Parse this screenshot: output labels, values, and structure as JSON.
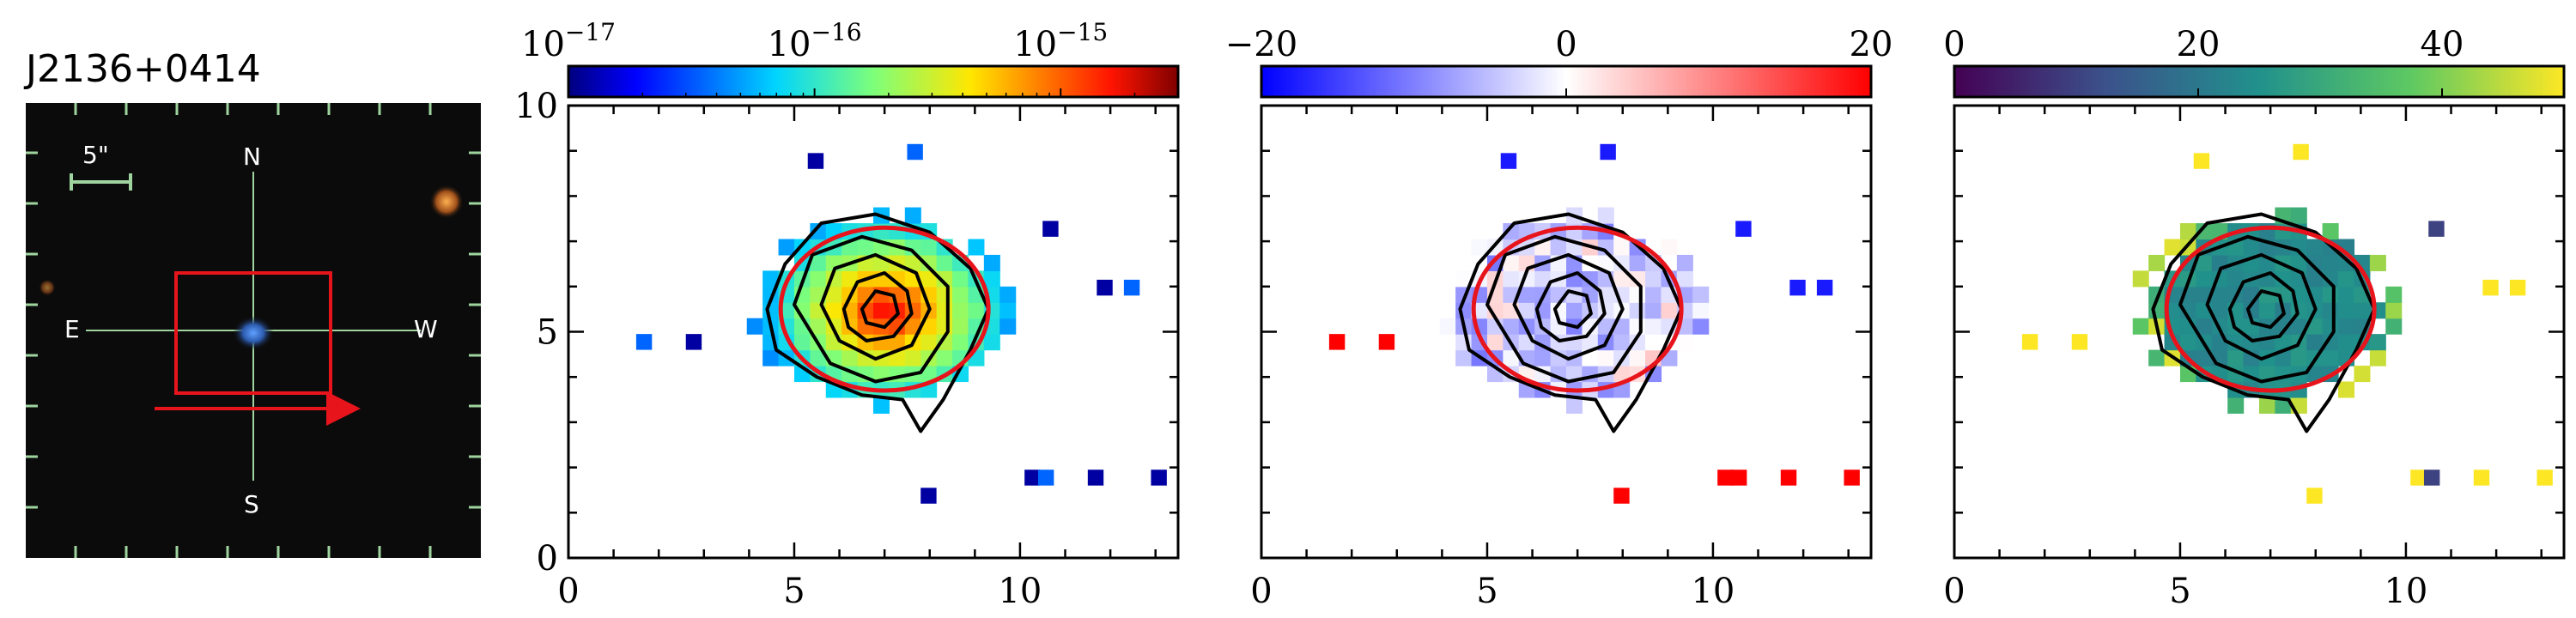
{
  "object_name": "J2136+0414",
  "finder": {
    "compass": {
      "N": "N",
      "S": "S",
      "E": "E",
      "W": "W"
    },
    "scale_label": "5\"",
    "colors": {
      "background": "#0b0b0b",
      "grid": "#9fd49f",
      "box": "#e8141c",
      "arrow": "#e8141c",
      "galaxy": "#3b6fd0"
    }
  },
  "chart_data": [
    {
      "type": "heatmap",
      "panel": "flux",
      "colormap": "jet",
      "colorbar": {
        "scale": "log",
        "range": [
          1e-17,
          3e-15
        ],
        "ticks": [
          {
            "value": 1e-17,
            "base": "10",
            "exp": "−17"
          },
          {
            "value": 1e-16,
            "base": "10",
            "exp": "−16"
          },
          {
            "value": 1e-15,
            "base": "10",
            "exp": "−15"
          }
        ]
      },
      "xlim": [
        0,
        13.5
      ],
      "ylim": [
        0,
        10
      ],
      "xticks": [
        0,
        5,
        10
      ],
      "yticks": [
        0,
        5,
        10
      ],
      "ellipse": {
        "cx": 7.0,
        "cy": 5.5,
        "rx": 2.3,
        "ry": 1.8,
        "color": "#e8141c"
      },
      "contours": [
        [
          [
            4.6,
            4.6
          ],
          [
            4.4,
            5.5
          ],
          [
            4.8,
            6.5
          ],
          [
            5.6,
            7.4
          ],
          [
            6.8,
            7.6
          ],
          [
            8.0,
            7.2
          ],
          [
            8.9,
            6.4
          ],
          [
            9.3,
            5.5
          ],
          [
            8.9,
            4.6
          ],
          [
            8.3,
            3.5
          ],
          [
            7.8,
            2.8
          ],
          [
            7.4,
            3.5
          ],
          [
            6.5,
            3.6
          ],
          [
            5.5,
            4.0
          ]
        ],
        [
          [
            5.0,
            5.6
          ],
          [
            5.4,
            6.7
          ],
          [
            6.5,
            7.1
          ],
          [
            7.6,
            6.8
          ],
          [
            8.4,
            6.0
          ],
          [
            8.4,
            5.0
          ],
          [
            7.8,
            4.1
          ],
          [
            6.8,
            3.9
          ],
          [
            5.8,
            4.3
          ]
        ],
        [
          [
            5.6,
            5.6
          ],
          [
            5.9,
            6.4
          ],
          [
            6.8,
            6.7
          ],
          [
            7.7,
            6.3
          ],
          [
            8.0,
            5.5
          ],
          [
            7.6,
            4.7
          ],
          [
            6.8,
            4.4
          ],
          [
            6.0,
            4.8
          ]
        ],
        [
          [
            6.1,
            5.5
          ],
          [
            6.4,
            6.1
          ],
          [
            7.0,
            6.3
          ],
          [
            7.5,
            5.9
          ],
          [
            7.6,
            5.4
          ],
          [
            7.2,
            4.9
          ],
          [
            6.6,
            4.8
          ],
          [
            6.2,
            5.1
          ]
        ],
        [
          [
            6.5,
            5.5
          ],
          [
            6.8,
            5.9
          ],
          [
            7.2,
            5.8
          ],
          [
            7.3,
            5.4
          ],
          [
            7.0,
            5.1
          ],
          [
            6.6,
            5.2
          ]
        ]
      ],
      "stray_pixels": [
        [
          1.5,
          4.6
        ],
        [
          2.6,
          4.6
        ],
        [
          5.3,
          8.6
        ],
        [
          7.5,
          8.8
        ],
        [
          10.5,
          7.1
        ],
        [
          11.7,
          5.8
        ],
        [
          12.3,
          5.8
        ],
        [
          7.8,
          1.2
        ],
        [
          10.1,
          1.6
        ],
        [
          10.4,
          1.6
        ],
        [
          11.5,
          1.6
        ],
        [
          12.9,
          1.6
        ]
      ]
    },
    {
      "type": "heatmap",
      "panel": "velocity",
      "colormap": "bwr",
      "colorbar": {
        "scale": "linear",
        "range": [
          -20,
          20
        ],
        "ticks": [
          {
            "value": -20,
            "label": "−20"
          },
          {
            "value": 0,
            "label": "0"
          },
          {
            "value": 20,
            "label": "20"
          }
        ]
      },
      "xlim": [
        0,
        13.5
      ],
      "ylim": [
        0,
        10
      ],
      "xticks": [
        0,
        5,
        10
      ],
      "yticks": [
        0,
        5,
        10
      ],
      "ellipse": {
        "cx": 7.0,
        "cy": 5.5,
        "rx": 2.3,
        "ry": 1.8,
        "color": "#e8141c"
      },
      "stray_pixels": [
        [
          1.5,
          4.6
        ],
        [
          2.6,
          4.6
        ],
        [
          5.3,
          8.6
        ],
        [
          7.5,
          8.8
        ],
        [
          10.5,
          7.1
        ],
        [
          11.7,
          5.8
        ],
        [
          12.3,
          5.8
        ],
        [
          7.8,
          1.2
        ],
        [
          10.1,
          1.6
        ],
        [
          10.4,
          1.6
        ],
        [
          11.5,
          1.6
        ],
        [
          12.9,
          1.6
        ]
      ]
    },
    {
      "type": "heatmap",
      "panel": "dispersion",
      "colormap": "viridis",
      "colorbar": {
        "scale": "linear",
        "range": [
          0,
          50
        ],
        "ticks": [
          {
            "value": 0,
            "label": "0"
          },
          {
            "value": 20,
            "label": "20"
          },
          {
            "value": 40,
            "label": "40"
          }
        ]
      },
      "xlim": [
        0,
        13.5
      ],
      "ylim": [
        0,
        10
      ],
      "xticks": [
        0,
        5,
        10
      ],
      "yticks": [
        0,
        5,
        10
      ],
      "ellipse": {
        "cx": 7.0,
        "cy": 5.5,
        "rx": 2.3,
        "ry": 1.8,
        "color": "#e8141c"
      },
      "stray_pixels": [
        [
          1.5,
          4.6
        ],
        [
          2.6,
          4.6
        ],
        [
          5.3,
          8.6
        ],
        [
          7.5,
          8.8
        ],
        [
          10.5,
          7.1
        ],
        [
          11.7,
          5.8
        ],
        [
          12.3,
          5.8
        ],
        [
          7.8,
          1.2
        ],
        [
          10.1,
          1.6
        ],
        [
          10.4,
          1.6
        ],
        [
          11.5,
          1.6
        ],
        [
          12.9,
          1.6
        ]
      ]
    }
  ]
}
